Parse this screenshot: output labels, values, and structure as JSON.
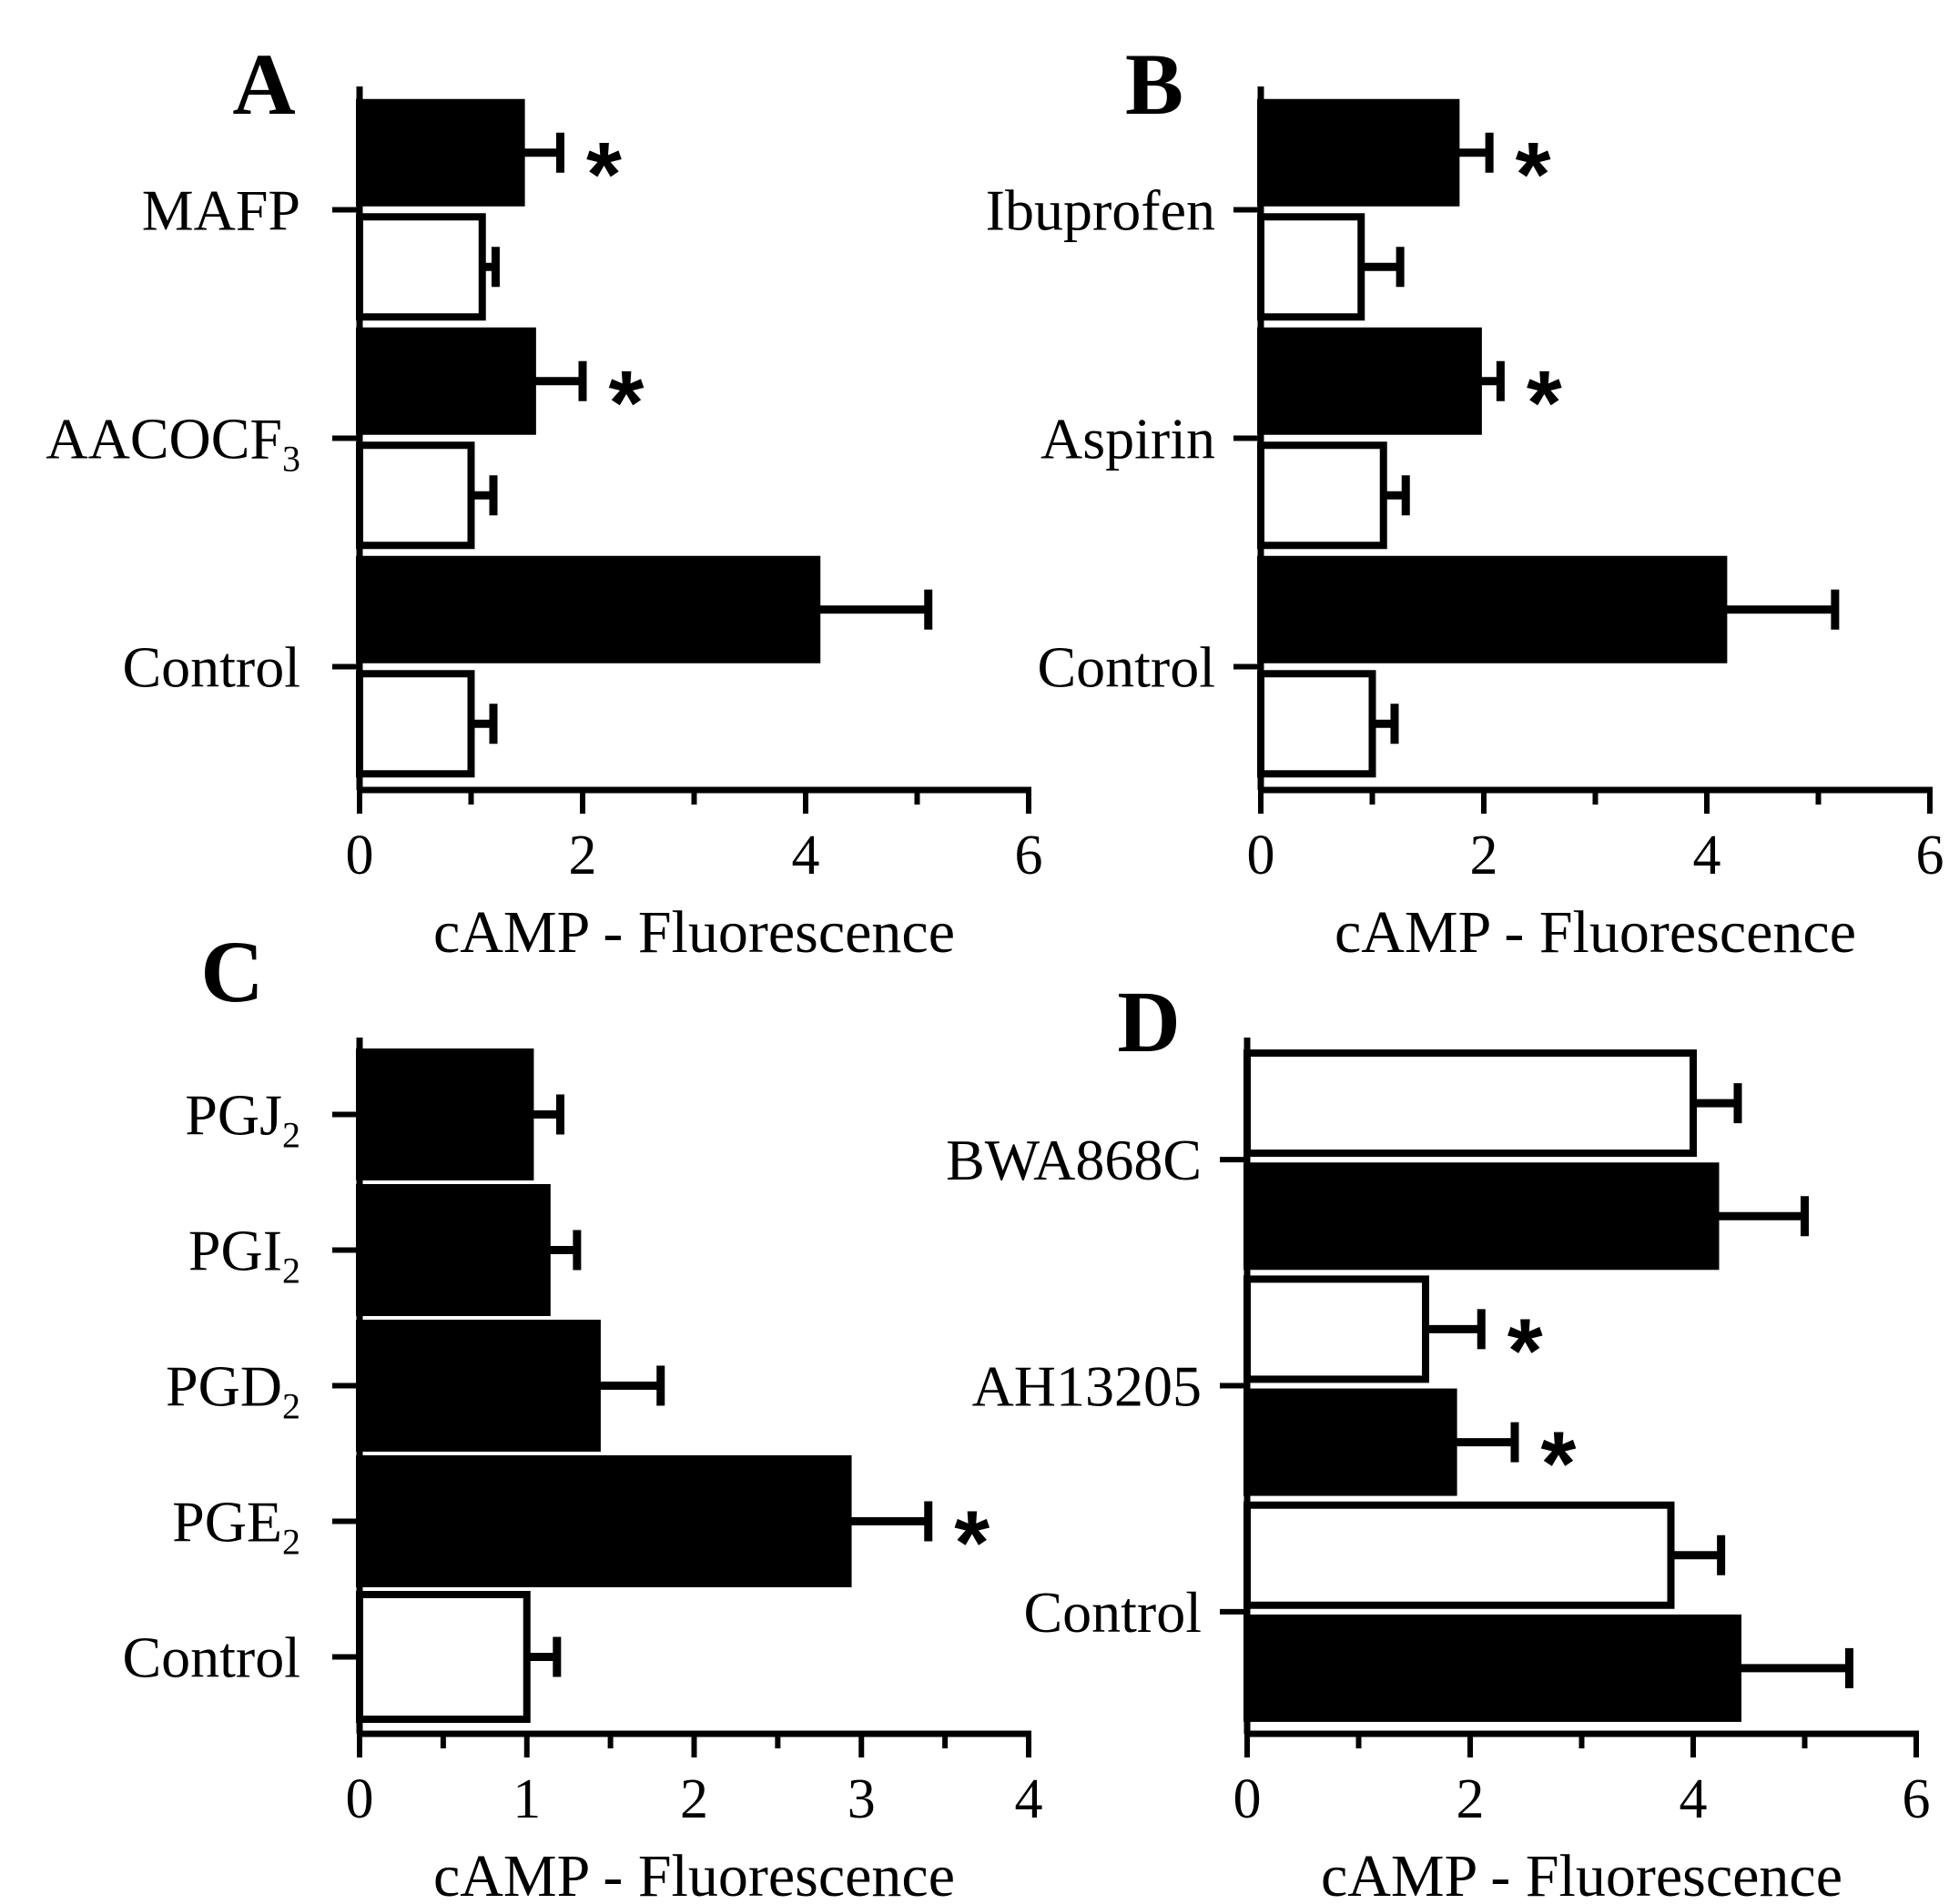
{
  "chart_data": [
    {
      "panel": "A",
      "type": "bar",
      "orientation": "horizontal",
      "xlabel": "cAMP - Fluorescence",
      "xlim": [
        0,
        6
      ],
      "xticks": [
        "0",
        "2",
        "4",
        "6"
      ],
      "groups": [
        {
          "label": "MAFP",
          "bars": [
            {
              "fill": "black",
              "value": 1.45,
              "error": 0.35,
              "significant": true
            },
            {
              "fill": "white",
              "value": 1.1,
              "error": 0.12,
              "significant": false
            }
          ]
        },
        {
          "label": "AACOCF",
          "label_sub": "3",
          "bars": [
            {
              "fill": "black",
              "value": 1.55,
              "error": 0.45,
              "significant": true
            },
            {
              "fill": "white",
              "value": 1.0,
              "error": 0.2,
              "significant": false
            }
          ]
        },
        {
          "label": "Control",
          "bars": [
            {
              "fill": "black",
              "value": 4.1,
              "error": 1.0,
              "significant": false
            },
            {
              "fill": "white",
              "value": 1.0,
              "error": 0.2,
              "significant": false
            }
          ]
        }
      ]
    },
    {
      "panel": "B",
      "type": "bar",
      "orientation": "horizontal",
      "xlabel": "cAMP - Fluorescence",
      "xlim": [
        0,
        6
      ],
      "xticks": [
        "0",
        "2",
        "4",
        "6"
      ],
      "groups": [
        {
          "label": "Ibuprofen",
          "bars": [
            {
              "fill": "black",
              "value": 1.75,
              "error": 0.3,
              "significant": true
            },
            {
              "fill": "white",
              "value": 0.9,
              "error": 0.35,
              "significant": false
            }
          ]
        },
        {
          "label": "Aspirin",
          "bars": [
            {
              "fill": "black",
              "value": 1.95,
              "error": 0.2,
              "significant": true
            },
            {
              "fill": "white",
              "value": 1.1,
              "error": 0.2,
              "significant": false
            }
          ]
        },
        {
          "label": "Control",
          "bars": [
            {
              "fill": "black",
              "value": 4.15,
              "error": 1.0,
              "significant": false
            },
            {
              "fill": "white",
              "value": 1.0,
              "error": 0.2,
              "significant": false
            }
          ]
        }
      ]
    },
    {
      "panel": "C",
      "type": "bar",
      "orientation": "horizontal",
      "xlabel": "cAMP - Fluorescence",
      "xlim": [
        0,
        4
      ],
      "xticks": [
        "0",
        "1",
        "2",
        "3",
        "4"
      ],
      "groups": [
        {
          "label": "PGJ",
          "label_sub": "2",
          "bars": [
            {
              "fill": "black",
              "value": 1.02,
              "error": 0.18,
              "significant": false
            }
          ]
        },
        {
          "label": "PGI",
          "label_sub": "2",
          "bars": [
            {
              "fill": "black",
              "value": 1.12,
              "error": 0.18,
              "significant": false
            }
          ]
        },
        {
          "label": "PGD",
          "label_sub": "2",
          "bars": [
            {
              "fill": "black",
              "value": 1.42,
              "error": 0.38,
              "significant": false
            }
          ]
        },
        {
          "label": "PGE",
          "label_sub": "2",
          "bars": [
            {
              "fill": "black",
              "value": 2.92,
              "error": 0.48,
              "significant": true
            }
          ]
        },
        {
          "label": "Control",
          "bars": [
            {
              "fill": "white",
              "value": 1.0,
              "error": 0.18,
              "significant": false
            }
          ]
        }
      ]
    },
    {
      "panel": "D",
      "type": "bar",
      "orientation": "horizontal",
      "xlabel": "cAMP - Fluorescence",
      "xlim": [
        0,
        6
      ],
      "xticks": [
        "0",
        "2",
        "4",
        "6"
      ],
      "groups": [
        {
          "label": "BWA868C",
          "bars": [
            {
              "fill": "white",
              "value": 4.0,
              "error": 0.4,
              "significant": false
            },
            {
              "fill": "black",
              "value": 4.2,
              "error": 0.8,
              "significant": false
            }
          ]
        },
        {
          "label": "AH13205",
          "bars": [
            {
              "fill": "white",
              "value": 1.6,
              "error": 0.5,
              "significant": true
            },
            {
              "fill": "black",
              "value": 1.85,
              "error": 0.55,
              "significant": true
            }
          ]
        },
        {
          "label": "Control",
          "bars": [
            {
              "fill": "white",
              "value": 3.8,
              "error": 0.45,
              "significant": false
            },
            {
              "fill": "black",
              "value": 4.4,
              "error": 1.0,
              "significant": false
            }
          ]
        }
      ]
    }
  ],
  "significance_marker": "*",
  "colors": {
    "ink": "#000000",
    "paper": "#ffffff"
  }
}
